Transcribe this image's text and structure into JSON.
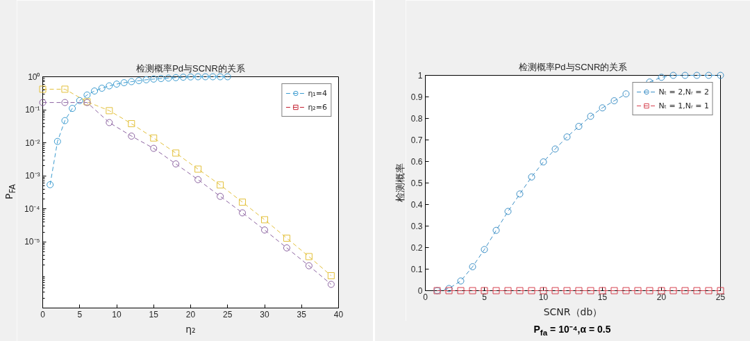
{
  "chart_data": [
    {
      "type": "line",
      "title": "检测概率Pd与SCNR的关系",
      "xlabel": "η₂",
      "ylabel": "P$_{FA}$",
      "log": "y",
      "xlim": [
        0,
        40
      ],
      "xticks": [
        0,
        5,
        10,
        15,
        20,
        25,
        30,
        35,
        40
      ],
      "ylim": [
        1e-07,
        1
      ],
      "yticks": [
        {
          "value": 1,
          "label": "10⁰"
        },
        {
          "value": 0.1,
          "label": "10⁻¹"
        },
        {
          "value": 0.01,
          "label": "10⁻²"
        },
        {
          "value": 0.001,
          "label": "10⁻³"
        },
        {
          "value": 0.0001,
          "label": "10⁻⁴"
        },
        {
          "value": 1e-05,
          "label": "10⁻⁵"
        }
      ],
      "legend": "top right",
      "line_style": "dashed",
      "series": [
        {
          "name": "η₁=4",
          "color": "#3a9bd0",
          "marker": "circle",
          "x": [
            1,
            2,
            3,
            4,
            5,
            6,
            7,
            8,
            9,
            10,
            11,
            12,
            13,
            14,
            15,
            16,
            17,
            18,
            19,
            20,
            21,
            22,
            23,
            24,
            25
          ],
          "values": [
            0.00054,
            0.011,
            0.047,
            0.11,
            0.19,
            0.28,
            0.37,
            0.45,
            0.53,
            0.6,
            0.66,
            0.71,
            0.76,
            0.81,
            0.85,
            0.88,
            0.91,
            0.94,
            0.97,
            0.99,
            1,
            1,
            1,
            1,
            1
          ]
        },
        {
          "name": "η₂=6",
          "color": "#c42030",
          "marker": "square"
        },
        {
          "color": "#e3c03a",
          "marker": "square",
          "x": [
            0,
            3,
            6,
            9,
            12,
            15,
            18,
            21,
            24,
            27,
            30,
            33,
            36,
            39
          ],
          "values": [
            0.42,
            0.42,
            0.175,
            0.094,
            0.038,
            0.014,
            0.0049,
            0.0016,
            0.00053,
            0.00016,
            4.7e-05,
            1.3e-05,
            3.6e-06,
            9.5e-07
          ]
        },
        {
          "color": "#8b62a0",
          "marker": "circle",
          "x": [
            0,
            3,
            6,
            9,
            12,
            15,
            18,
            21,
            24,
            27,
            30,
            33,
            36,
            39
          ],
          "values": [
            0.166,
            0.166,
            0.166,
            0.041,
            0.016,
            0.0068,
            0.0023,
            0.00077,
            0.00024,
            7.6e-05,
            2.3e-05,
            6.6e-06,
            1.9e-06,
            5.2e-07
          ]
        }
      ]
    },
    {
      "type": "line",
      "title": "检测概率Pd与SCNR的关系",
      "xlabel": "SCNR（db）",
      "ylabel": "检测概率",
      "xlim": [
        0,
        25
      ],
      "xticks": [
        0,
        5,
        10,
        15,
        20,
        25
      ],
      "ylim": [
        0,
        1
      ],
      "yticks": [
        0,
        0.1,
        0.2,
        0.3,
        0.4,
        0.5,
        0.6,
        0.7,
        0.8,
        0.9,
        1
      ],
      "legend": "top right",
      "line_style": "dashed",
      "annotations": [
        "P$_{fa}$ = 10⁻⁴,α = 0.5"
      ],
      "series": [
        {
          "name": "Nₜ = 2,Nᵣ = 2",
          "color": "#3b8fc6",
          "marker": "circle",
          "x": [
            1,
            2,
            3,
            4,
            5,
            6,
            7,
            8,
            9,
            10,
            11,
            12,
            13,
            14,
            15,
            16,
            17,
            18,
            19,
            20,
            21,
            22,
            23,
            24,
            25
          ],
          "values": [
            0,
            0.01,
            0.045,
            0.111,
            0.191,
            0.28,
            0.368,
            0.449,
            0.528,
            0.598,
            0.658,
            0.714,
            0.763,
            0.81,
            0.849,
            0.882,
            0.914,
            null,
            0.969,
            0.991,
            1,
            1,
            1,
            1,
            1
          ]
        },
        {
          "name": "Nₜ = 1,Nᵣ = 1",
          "color": "#d6404e",
          "marker": "square",
          "x": [
            1,
            2,
            3,
            4,
            5,
            6,
            7,
            8,
            9,
            10,
            11,
            12,
            13,
            14,
            15,
            16,
            17,
            18,
            19,
            20,
            21,
            22,
            23,
            24,
            25
          ],
          "values": [
            0,
            0,
            0,
            0,
            0,
            0,
            0,
            0,
            0,
            0,
            0,
            0,
            0,
            0,
            0,
            0,
            0,
            0,
            0,
            0,
            0,
            0,
            0,
            0,
            0
          ]
        }
      ]
    }
  ]
}
